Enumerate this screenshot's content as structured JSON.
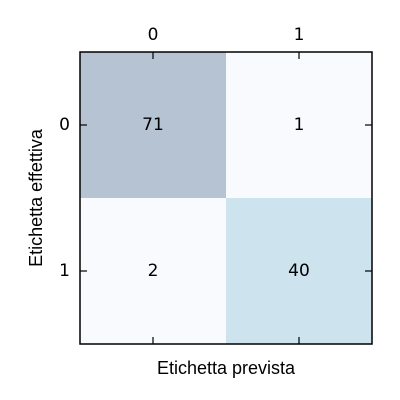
{
  "chart_data": {
    "type": "heatmap",
    "title": "",
    "xlabel": "Etichetta prevista",
    "ylabel": "Etichetta effettiva",
    "x_tick_labels": [
      "0",
      "1"
    ],
    "y_tick_labels": [
      "0",
      "1"
    ],
    "x_tick_position": "top",
    "values": [
      [
        71,
        1
      ],
      [
        2,
        40
      ]
    ],
    "cell_colors": [
      [
        "#b5c3d3",
        "#f8fafd"
      ],
      [
        "#f8fafd",
        "#cde3ee"
      ]
    ],
    "grid": false,
    "legend": "none"
  }
}
